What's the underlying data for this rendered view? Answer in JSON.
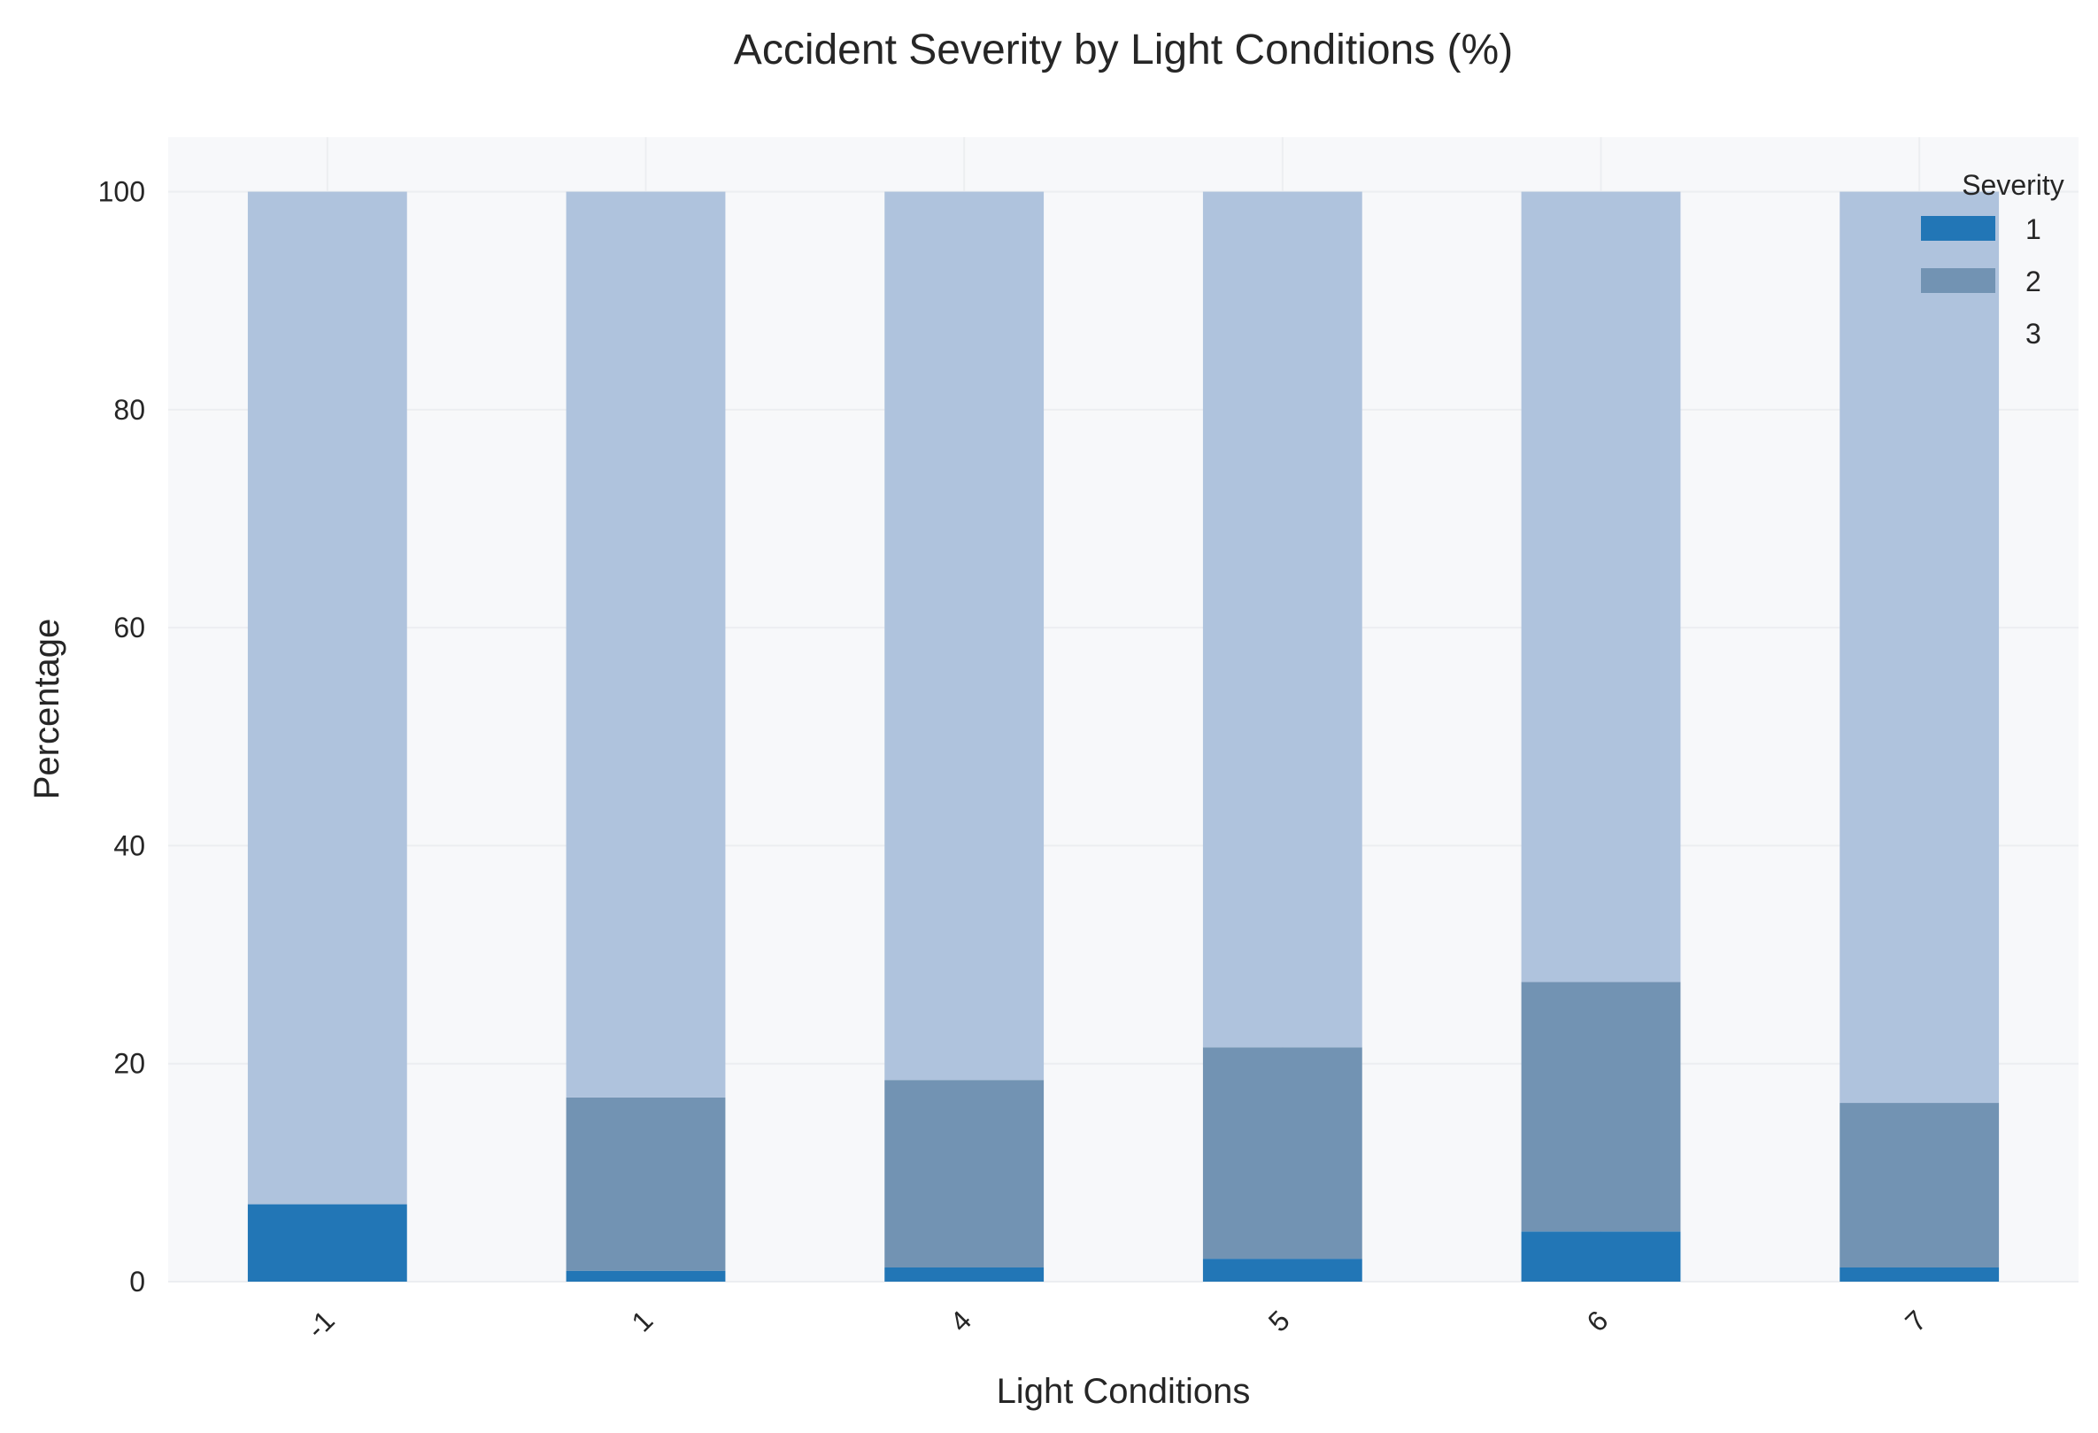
{
  "chart_data": {
    "type": "bar",
    "stacked": true,
    "title": "Accident Severity by Light Conditions (%)",
    "xlabel": "Light Conditions",
    "ylabel": "Percentage",
    "categories": [
      "-1",
      "1",
      "4",
      "5",
      "6",
      "7"
    ],
    "series": [
      {
        "name": "1",
        "values": [
          7.1,
          1.0,
          1.3,
          2.1,
          4.6,
          1.3
        ],
        "color": "#2276b6"
      },
      {
        "name": "2",
        "values": [
          0.0,
          15.9,
          17.2,
          19.4,
          22.9,
          15.1
        ],
        "color": "#7293b3"
      },
      {
        "name": "3",
        "values": [
          92.9,
          83.1,
          81.5,
          78.5,
          72.5,
          83.6
        ],
        "color": "#afc3dd"
      }
    ],
    "ylim": [
      0,
      105
    ],
    "yticks": [
      0,
      20,
      40,
      60,
      80,
      100
    ],
    "grid": true,
    "legend": {
      "title": "Severity",
      "placement": "top-right"
    },
    "colors": {
      "plot_background": "#f7f8fa",
      "grid": "#eceef1",
      "text": "#262626"
    }
  }
}
